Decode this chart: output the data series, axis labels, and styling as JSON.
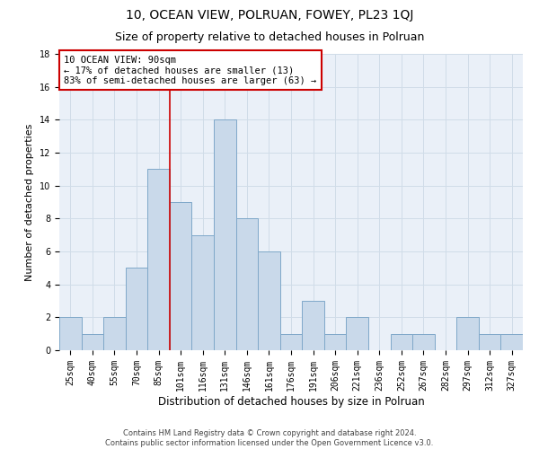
{
  "title1": "10, OCEAN VIEW, POLRUAN, FOWEY, PL23 1QJ",
  "title2": "Size of property relative to detached houses in Polruan",
  "xlabel": "Distribution of detached houses by size in Polruan",
  "ylabel": "Number of detached properties",
  "footer1": "Contains HM Land Registry data © Crown copyright and database right 2024.",
  "footer2": "Contains public sector information licensed under the Open Government Licence v3.0.",
  "categories": [
    "25sqm",
    "40sqm",
    "55sqm",
    "70sqm",
    "85sqm",
    "101sqm",
    "116sqm",
    "131sqm",
    "146sqm",
    "161sqm",
    "176sqm",
    "191sqm",
    "206sqm",
    "221sqm",
    "236sqm",
    "252sqm",
    "267sqm",
    "282sqm",
    "297sqm",
    "312sqm",
    "327sqm"
  ],
  "values": [
    2,
    1,
    2,
    5,
    11,
    9,
    7,
    14,
    8,
    6,
    1,
    3,
    1,
    2,
    0,
    1,
    1,
    0,
    2,
    1,
    1
  ],
  "bar_color": "#c9d9ea",
  "bar_edge_color": "#7fa8c9",
  "bar_width": 1.0,
  "annotation_line1": "10 OCEAN VIEW: 90sqm",
  "annotation_line2": "← 17% of detached houses are smaller (13)",
  "annotation_line3": "83% of semi-detached houses are larger (63) →",
  "annotation_box_color": "#ffffff",
  "annotation_box_edge_color": "#cc0000",
  "vline_x": 4.5,
  "vline_color": "#cc0000",
  "ylim": [
    0,
    18
  ],
  "yticks": [
    0,
    2,
    4,
    6,
    8,
    10,
    12,
    14,
    16,
    18
  ],
  "grid_color": "#d0dce8",
  "background_color": "#eaf0f8",
  "title1_fontsize": 10,
  "title2_fontsize": 9,
  "xlabel_fontsize": 8.5,
  "ylabel_fontsize": 8,
  "tick_fontsize": 7,
  "annotation_fontsize": 7.5,
  "footer_fontsize": 6
}
